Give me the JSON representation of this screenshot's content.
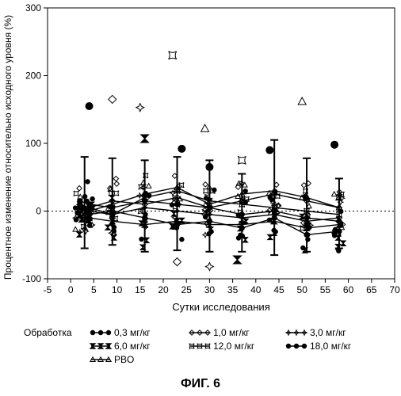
{
  "chart_data": {
    "type": "scatter",
    "ylabel": "Процентное изменение относительно исходного уровня (%)",
    "xlabel": "Сутки исследования",
    "xlim": [
      -5,
      70
    ],
    "ylim": [
      -100,
      300
    ],
    "x_ticks": [
      "-5",
      "0",
      "5",
      "10",
      "15",
      "20",
      "25",
      "30",
      "35",
      "40",
      "45",
      "50",
      "55",
      "60",
      "65",
      "70"
    ],
    "y_ticks": [
      "-100",
      "0",
      "100",
      "200",
      "300"
    ],
    "reference_line": 0,
    "legend_title": "Обработка",
    "legend_position": "bottom",
    "series": [
      {
        "name": "0,3 мг/кг",
        "x": [
          2,
          4,
          9,
          16,
          23,
          30,
          37,
          44,
          51,
          58
        ],
        "y": [
          5,
          -5,
          0,
          -10,
          -20,
          -15,
          -25,
          -10,
          -35,
          -30
        ]
      },
      {
        "name": "1,0 мг/кг",
        "x": [
          2,
          4,
          9,
          16,
          23,
          30,
          37,
          44,
          51,
          58
        ],
        "y": [
          10,
          5,
          15,
          10,
          20,
          5,
          15,
          25,
          15,
          5
        ]
      },
      {
        "name": "3,0 мг/кг",
        "x": [
          2,
          4,
          9,
          16,
          23,
          30,
          37,
          44,
          51,
          58
        ],
        "y": [
          0,
          5,
          -5,
          5,
          0,
          -5,
          -10,
          -5,
          -15,
          -10
        ]
      },
      {
        "name": "6,0 мг/кг",
        "x": [
          2,
          4,
          9,
          16,
          23,
          30,
          37,
          44,
          51,
          58
        ],
        "y": [
          -5,
          -10,
          -15,
          -20,
          -15,
          -20,
          -20,
          -15,
          -25,
          -20
        ]
      },
      {
        "name": "12,0 мг/кг",
        "x": [
          2,
          4,
          9,
          16,
          23,
          30,
          37,
          44,
          51,
          58
        ],
        "y": [
          10,
          0,
          -5,
          20,
          30,
          15,
          10,
          5,
          0,
          -5
        ]
      },
      {
        "name": "18,0 мг/кг",
        "x": [
          2,
          4,
          9,
          16,
          23,
          30,
          37,
          44,
          51,
          58
        ],
        "y": [
          15,
          10,
          5,
          15,
          10,
          5,
          -5,
          0,
          -10,
          -15
        ]
      },
      {
        "name": "PBO",
        "x": [
          2,
          4,
          9,
          16,
          23,
          30,
          37,
          44,
          51,
          58
        ],
        "y": [
          -10,
          0,
          10,
          25,
          35,
          10,
          25,
          30,
          20,
          5
        ]
      }
    ],
    "outliers": [
      {
        "x": 4,
        "y": 155
      },
      {
        "x": 9,
        "y": 165
      },
      {
        "x": 15,
        "y": 153
      },
      {
        "x": 16,
        "y": 107
      },
      {
        "x": 22,
        "y": 230
      },
      {
        "x": 24,
        "y": 92
      },
      {
        "x": 29,
        "y": 122
      },
      {
        "x": 30,
        "y": 65
      },
      {
        "x": 23,
        "y": -75
      },
      {
        "x": 30,
        "y": -82
      },
      {
        "x": 36,
        "y": -72
      },
      {
        "x": 37,
        "y": 75
      },
      {
        "x": 43,
        "y": 90
      },
      {
        "x": 50,
        "y": 162
      },
      {
        "x": 57,
        "y": 98
      }
    ],
    "whiskers": [
      {
        "x": 3,
        "low": -55,
        "high": 80
      },
      {
        "x": 9,
        "low": -50,
        "high": 78
      },
      {
        "x": 16,
        "low": -60,
        "high": 75
      },
      {
        "x": 23,
        "low": -58,
        "high": 80
      },
      {
        "x": 30,
        "low": -60,
        "high": 75
      },
      {
        "x": 37,
        "low": -60,
        "high": 55
      },
      {
        "x": 44,
        "low": -65,
        "high": 105
      },
      {
        "x": 51,
        "low": -60,
        "high": 78
      },
      {
        "x": 58,
        "low": -55,
        "high": 48
      }
    ]
  },
  "figure": {
    "caption": "ФИГ. 6"
  }
}
